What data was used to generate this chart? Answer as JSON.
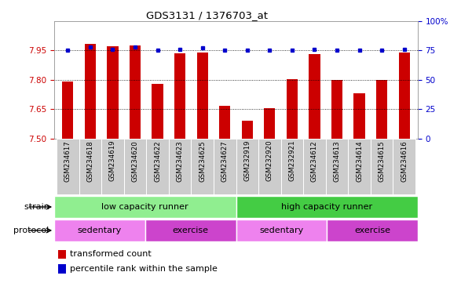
{
  "title": "GDS3131 / 1376703_at",
  "samples": [
    "GSM234617",
    "GSM234618",
    "GSM234619",
    "GSM234620",
    "GSM234622",
    "GSM234623",
    "GSM234625",
    "GSM234627",
    "GSM232919",
    "GSM232920",
    "GSM232921",
    "GSM234612",
    "GSM234613",
    "GSM234614",
    "GSM234615",
    "GSM234616"
  ],
  "transformed_count": [
    7.79,
    7.985,
    7.97,
    7.975,
    7.78,
    7.935,
    7.94,
    7.665,
    7.59,
    7.655,
    7.805,
    7.93,
    7.8,
    7.73,
    7.8,
    7.94
  ],
  "percentile_rank": [
    75,
    78,
    76,
    78,
    75,
    76,
    77,
    75,
    75,
    75,
    75,
    76,
    75,
    75,
    75,
    76
  ],
  "ylim_left": [
    7.5,
    8.1
  ],
  "ylim_right": [
    0,
    100
  ],
  "yticks_left": [
    7.5,
    7.65,
    7.8,
    7.95
  ],
  "yticks_right": [
    0,
    25,
    50,
    75,
    100
  ],
  "ytick_labels_right": [
    "0",
    "25",
    "50",
    "75",
    "100%"
  ],
  "bar_color": "#cc0000",
  "dot_color": "#0000cc",
  "bar_width": 0.5,
  "strain_groups": [
    {
      "label": "low capacity runner",
      "start": 0,
      "end": 8,
      "color": "#90ee90"
    },
    {
      "label": "high capacity runner",
      "start": 8,
      "end": 16,
      "color": "#44cc44"
    }
  ],
  "protocol_groups": [
    {
      "label": "sedentary",
      "start": 0,
      "end": 4,
      "color": "#ee82ee"
    },
    {
      "label": "exercise",
      "start": 4,
      "end": 8,
      "color": "#cc44cc"
    },
    {
      "label": "sedentary",
      "start": 8,
      "end": 12,
      "color": "#ee82ee"
    },
    {
      "label": "exercise",
      "start": 12,
      "end": 16,
      "color": "#cc44cc"
    }
  ],
  "legend_red_label": "transformed count",
  "legend_blue_label": "percentile rank within the sample",
  "strain_label": "strain",
  "protocol_label": "protocol",
  "tick_color_left": "#cc0000",
  "tick_color_right": "#0000cc",
  "bg_color": "#ffffff",
  "label_bg": "#cccccc"
}
